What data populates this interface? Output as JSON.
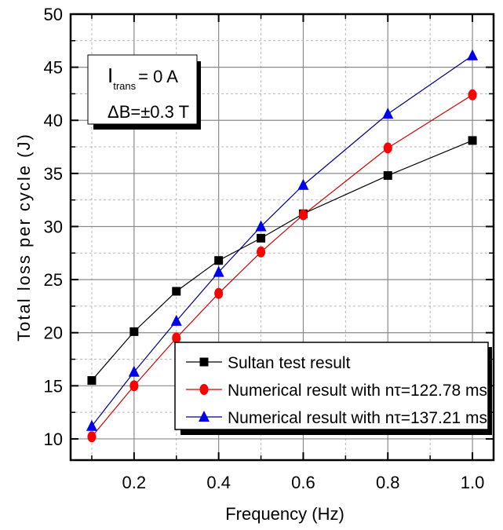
{
  "chart_data": {
    "type": "line",
    "title": "",
    "xlabel": "Frequency (Hz)",
    "ylabel": "Total loss per cycle (J)",
    "xlim": [
      0.05,
      1.05
    ],
    "ylim": [
      8,
      50
    ],
    "xticks": [
      0.2,
      0.4,
      0.6,
      0.8,
      1.0
    ],
    "xtick_labels": [
      "0.2",
      "0.4",
      "0.6",
      "0.8",
      "1.0"
    ],
    "xminor": [
      0.1,
      0.3,
      0.5,
      0.7,
      0.9
    ],
    "yticks": [
      10,
      15,
      20,
      25,
      30,
      35,
      40,
      45,
      50
    ],
    "ytick_labels": [
      "10",
      "15",
      "20",
      "25",
      "30",
      "35",
      "40",
      "45",
      "50"
    ],
    "yminor": [
      12.5,
      17.5,
      22.5,
      27.5,
      32.5,
      37.5,
      42.5,
      47.5
    ],
    "grid": true,
    "legend_position": "bottom-right",
    "x": [
      0.1,
      0.2,
      0.3,
      0.4,
      0.5,
      0.6,
      0.8,
      1.0
    ],
    "series": [
      {
        "name": "Sultan test result",
        "marker": "square",
        "color": "#000000",
        "values": [
          15.5,
          20.1,
          23.9,
          26.8,
          28.9,
          31.2,
          34.8,
          38.1
        ]
      },
      {
        "name": "Numerical result with nτ=122.78 ms",
        "marker": "circle",
        "color": "#ff0000",
        "line_color": "#cc0000",
        "values": [
          10.2,
          15.0,
          19.5,
          23.7,
          27.6,
          31.1,
          37.4,
          42.4
        ]
      },
      {
        "name": "Numerical result with nτ=137.21 ms",
        "marker": "triangle",
        "color": "#0000ee",
        "line_color": "#000080",
        "values": [
          11.2,
          16.3,
          21.1,
          25.7,
          30.0,
          33.9,
          40.6,
          46.1
        ]
      }
    ],
    "annotations": {
      "line1_main": "I",
      "line1_sub": "trans",
      "line1_rest": "= 0 A",
      "line2": "ΔB=±0.3 T"
    }
  }
}
